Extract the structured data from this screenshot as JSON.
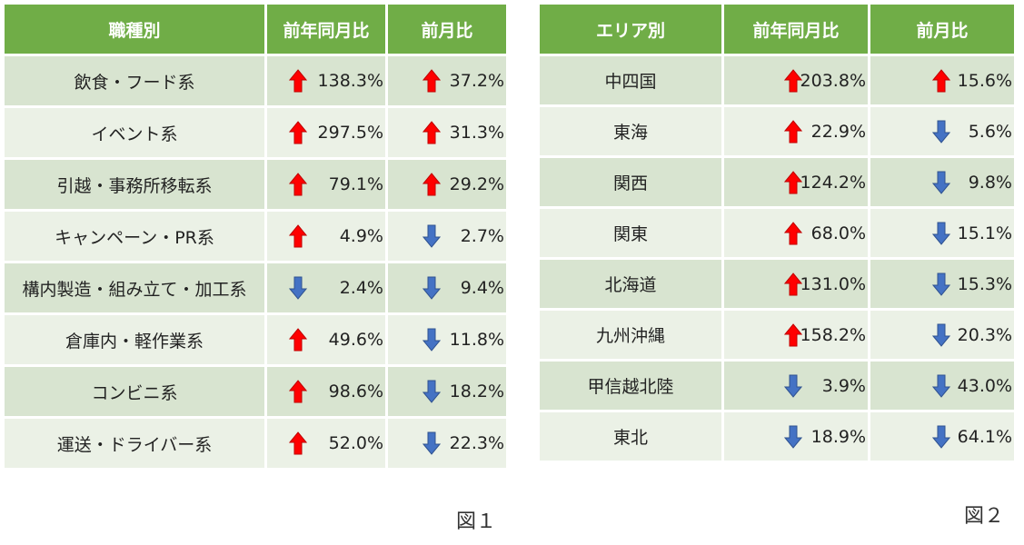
{
  "table1": {
    "headers": [
      "職種別",
      "前年同月比",
      "前月比"
    ],
    "rows": [
      {
        "label": "飲食・フード系",
        "yoy": {
          "dir": "up",
          "value": "138.3%"
        },
        "mom": {
          "dir": "up",
          "value": "37.2%"
        }
      },
      {
        "label": "イベント系",
        "yoy": {
          "dir": "up",
          "value": "297.5%"
        },
        "mom": {
          "dir": "up",
          "value": "31.3%"
        }
      },
      {
        "label": "引越・事務所移転系",
        "yoy": {
          "dir": "up",
          "value": "79.1%"
        },
        "mom": {
          "dir": "up",
          "value": "29.2%"
        }
      },
      {
        "label": "キャンペーン・PR系",
        "yoy": {
          "dir": "up",
          "value": "4.9%"
        },
        "mom": {
          "dir": "down",
          "value": "2.7%"
        }
      },
      {
        "label": "構内製造・組み立て・加工系",
        "yoy": {
          "dir": "down",
          "value": "2.4%"
        },
        "mom": {
          "dir": "down",
          "value": "9.4%"
        }
      },
      {
        "label": "倉庫内・軽作業系",
        "yoy": {
          "dir": "up",
          "value": "49.6%"
        },
        "mom": {
          "dir": "down",
          "value": "11.8%"
        }
      },
      {
        "label": "コンビニ系",
        "yoy": {
          "dir": "up",
          "value": "98.6%"
        },
        "mom": {
          "dir": "down",
          "value": "18.2%"
        }
      },
      {
        "label": "運送・ドライバー系",
        "yoy": {
          "dir": "up",
          "value": "52.0%"
        },
        "mom": {
          "dir": "down",
          "value": "22.3%"
        }
      }
    ],
    "caption": "図１"
  },
  "table2": {
    "headers": [
      "エリア別",
      "前年同月比",
      "前月比"
    ],
    "rows": [
      {
        "label": "中四国",
        "yoy": {
          "dir": "up",
          "value": "203.8%"
        },
        "mom": {
          "dir": "up",
          "value": "15.6%"
        }
      },
      {
        "label": "東海",
        "yoy": {
          "dir": "up",
          "value": "22.9%"
        },
        "mom": {
          "dir": "down",
          "value": "5.6%"
        }
      },
      {
        "label": "関西",
        "yoy": {
          "dir": "up",
          "value": "124.2%"
        },
        "mom": {
          "dir": "down",
          "value": "9.8%"
        }
      },
      {
        "label": "関東",
        "yoy": {
          "dir": "up",
          "value": "68.0%"
        },
        "mom": {
          "dir": "down",
          "value": "15.1%"
        }
      },
      {
        "label": "北海道",
        "yoy": {
          "dir": "up",
          "value": "131.0%"
        },
        "mom": {
          "dir": "down",
          "value": "15.3%"
        }
      },
      {
        "label": "九州沖縄",
        "yoy": {
          "dir": "up",
          "value": "158.2%"
        },
        "mom": {
          "dir": "down",
          "value": "20.3%"
        }
      },
      {
        "label": "甲信越北陸",
        "yoy": {
          "dir": "down",
          "value": "3.9%"
        },
        "mom": {
          "dir": "down",
          "value": "43.0%"
        }
      },
      {
        "label": "東北",
        "yoy": {
          "dir": "down",
          "value": "18.9%"
        },
        "mom": {
          "dir": "down",
          "value": "64.1%"
        }
      }
    ],
    "caption": "図２"
  },
  "colors": {
    "header_bg": "#70ad47",
    "up_arrow": "#ff0000",
    "down_arrow": "#4472c4"
  }
}
